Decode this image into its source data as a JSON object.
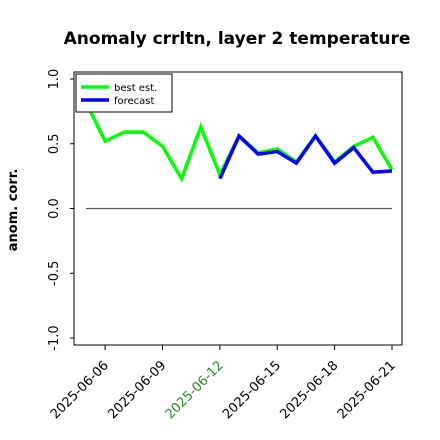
{
  "chart_data": {
    "type": "line",
    "title": "Anomaly crrltn, layer 2 temperature",
    "ylabel": "anom. corr.",
    "xlabel": "",
    "ylim": [
      -1.0,
      1.0
    ],
    "yticks": [
      "-1.0",
      "-0.5",
      "0.0",
      "0.5",
      "1.0"
    ],
    "ytick_values": [
      -1.0,
      -0.5,
      0.0,
      0.5,
      1.0
    ],
    "x": [
      "2025-06-05",
      "2025-06-06",
      "2025-06-07",
      "2025-06-08",
      "2025-06-09",
      "2025-06-10",
      "2025-06-11",
      "2025-06-12",
      "2025-06-13",
      "2025-06-14",
      "2025-06-15",
      "2025-06-16",
      "2025-06-17",
      "2025-06-18",
      "2025-06-19",
      "2025-06-20",
      "2025-06-21"
    ],
    "xticks": [
      "2025-06-06",
      "2025-06-09",
      "2025-06-12",
      "2025-06-15",
      "2025-06-18",
      "2025-06-21"
    ],
    "xtick_colors": [
      "#000000",
      "#000000",
      "#228b22",
      "#000000",
      "#000000",
      "#000000"
    ],
    "series": [
      {
        "name": "best est.",
        "color": "#00ff00",
        "values": [
          0.82,
          0.52,
          0.59,
          0.59,
          0.48,
          0.23,
          0.63,
          0.26,
          0.56,
          0.43,
          0.46,
          0.36,
          0.56,
          0.36,
          0.48,
          0.55,
          0.3
        ]
      },
      {
        "name": "forecast",
        "color": "#0000ff",
        "values": [
          null,
          null,
          null,
          null,
          null,
          null,
          null,
          0.23,
          0.56,
          0.42,
          0.44,
          0.35,
          0.56,
          0.35,
          0.47,
          0.28,
          0.29
        ]
      }
    ],
    "zero_line": true,
    "legend_position": "top-left",
    "grid": false
  }
}
